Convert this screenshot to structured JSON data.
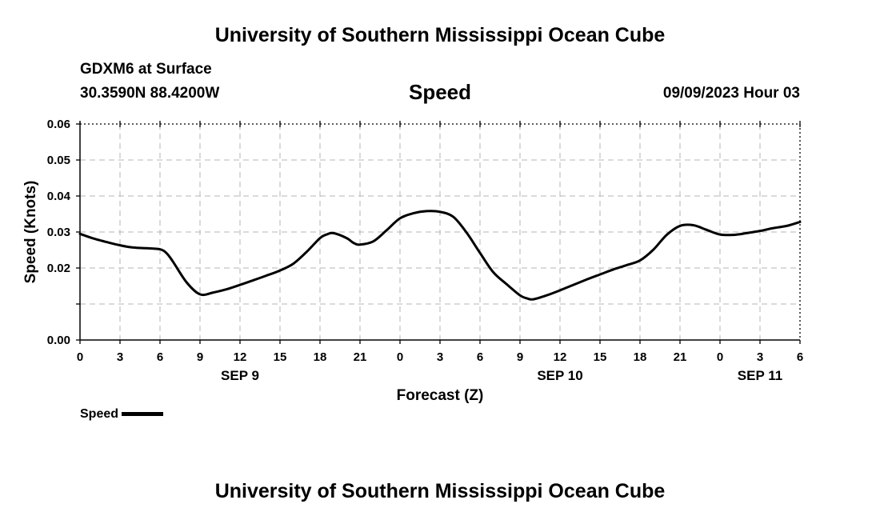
{
  "header": {
    "title": "University of Southern Mississippi Ocean Cube",
    "station": "GDXM6 at Surface",
    "coords": "30.3590N  88.4200W",
    "datetime": "09/09/2023 Hour 03"
  },
  "footer": {
    "title": "University of Southern Mississippi Ocean Cube"
  },
  "chart_data": {
    "type": "line",
    "title": "Speed",
    "xlabel": "Forecast (Z)",
    "ylabel": "Speed (Knots)",
    "xlim": [
      0,
      54
    ],
    "ylim": [
      0.0,
      0.06
    ],
    "x_ticks": [
      0,
      3,
      6,
      9,
      12,
      15,
      18,
      21,
      24,
      27,
      30,
      33,
      36,
      39,
      42,
      45,
      48,
      51,
      54
    ],
    "x_tick_labels": [
      "0",
      "3",
      "6",
      "9",
      "12",
      "15",
      "18",
      "21",
      "0",
      "3",
      "6",
      "9",
      "12",
      "15",
      "18",
      "21",
      "0",
      "3",
      "6"
    ],
    "y_ticks": [
      0.0,
      0.01,
      0.02,
      0.03,
      0.04,
      0.05,
      0.06
    ],
    "y_tick_labels": [
      "0.00",
      "",
      "0.02",
      "0.03",
      "0.04",
      "0.05",
      "0.06"
    ],
    "date_labels": [
      {
        "x": 12,
        "label": "SEP 9"
      },
      {
        "x": 36,
        "label": "SEP 10"
      },
      {
        "x": 51,
        "label": "SEP 11"
      }
    ],
    "grid": true,
    "legend": "bottom-left",
    "series": [
      {
        "name": "Speed",
        "x": [
          0,
          1,
          2,
          3,
          4,
          5,
          6,
          6.5,
          7,
          8,
          9,
          10,
          11,
          12,
          13,
          14,
          15,
          16,
          17,
          18,
          18.5,
          19,
          20,
          20.5,
          21,
          22,
          23,
          24,
          25,
          26,
          27,
          28,
          29,
          30,
          31,
          32,
          33,
          33.5,
          34,
          35,
          36,
          37,
          38,
          39,
          40,
          41,
          42,
          43,
          44,
          45,
          46,
          47,
          48,
          49,
          50,
          51,
          51.5,
          52,
          53,
          54
        ],
        "values": [
          0.0295,
          0.0282,
          0.0272,
          0.0263,
          0.0257,
          0.0255,
          0.0252,
          0.0241,
          0.0216,
          0.016,
          0.0127,
          0.0132,
          0.0141,
          0.0153,
          0.0166,
          0.0179,
          0.0193,
          0.0212,
          0.0245,
          0.0283,
          0.0293,
          0.0297,
          0.0283,
          0.027,
          0.0265,
          0.0274,
          0.0305,
          0.0338,
          0.0352,
          0.0358,
          0.0356,
          0.0342,
          0.0298,
          0.0242,
          0.0188,
          0.0155,
          0.0124,
          0.0116,
          0.0113,
          0.0124,
          0.0138,
          0.0153,
          0.0168,
          0.0182,
          0.0196,
          0.0208,
          0.0221,
          0.0251,
          0.0292,
          0.0317,
          0.0319,
          0.0306,
          0.0293,
          0.0292,
          0.0297,
          0.0303,
          0.0307,
          0.0311,
          0.0317,
          0.0328
        ]
      }
    ]
  }
}
